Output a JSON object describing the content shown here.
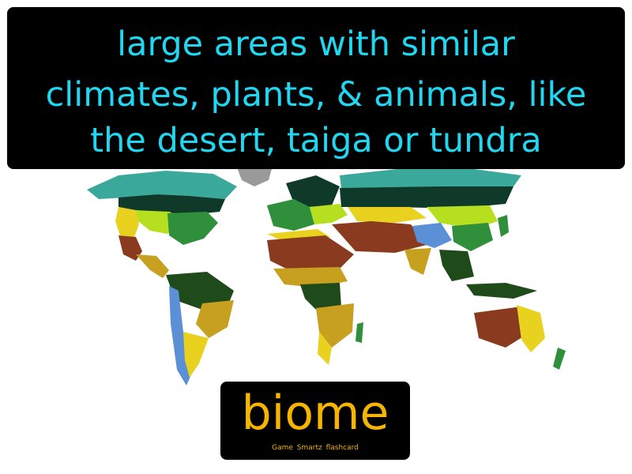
{
  "card": {
    "definition_lines": [
      "large areas with similar",
      "climates, plants, & animals, like",
      "the desert, taiga or tundra"
    ],
    "term": "biome",
    "brand": "Game Smartz flashcard"
  },
  "colors": {
    "definition_text": "#1fd7f0",
    "term_text": "#f5b400",
    "box_background": "#000000",
    "tundra": "#3aa89a",
    "taiga": "#0f3a2a",
    "temperate_forest": "#2f8f3a",
    "grassland": "#b6e01f",
    "steppe": "#e8d21f",
    "desert": "#8a3b1f",
    "savanna": "#c7a020",
    "rainforest": "#1f4a1a",
    "mountain": "#5b8fd6",
    "ice": "#9a9a9a"
  }
}
